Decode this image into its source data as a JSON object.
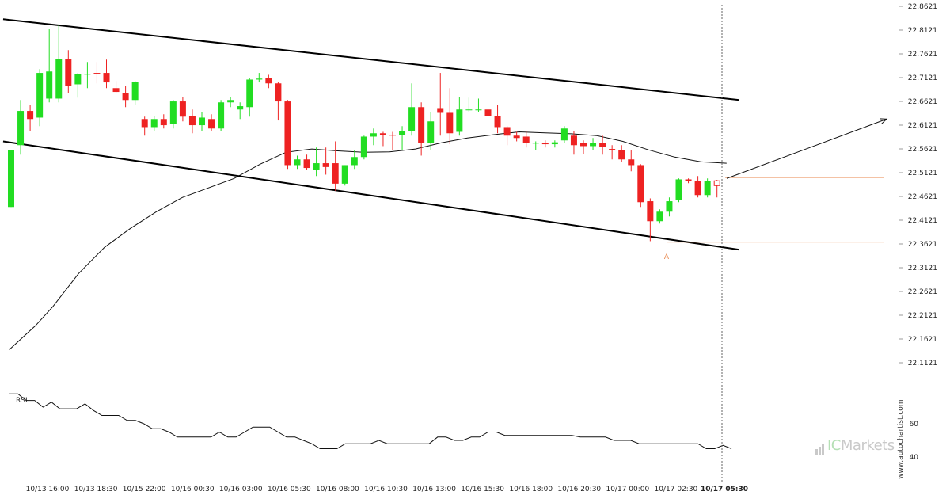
{
  "chart_data": {
    "type": "candlestick",
    "title": "",
    "y_axis": {
      "position": "right",
      "min": 22.0621,
      "max": 22.8621,
      "ticks": [
        "22.8621",
        "22.8121",
        "22.7621",
        "22.7121",
        "22.6621",
        "22.6121",
        "22.5621",
        "22.5121",
        "22.4621",
        "22.4121",
        "22.3621",
        "22.3121",
        "22.2621",
        "22.2121",
        "22.1621",
        "22.1121"
      ]
    },
    "x_axis": {
      "ticks": [
        "10/13 16:00",
        "10/13 18:30",
        "10/15 22:00",
        "10/16 00:30",
        "10/16 03:00",
        "10/16 05:30",
        "10/16 08:00",
        "10/16 10:30",
        "10/16 13:00",
        "10/16 15:30",
        "10/16 18:00",
        "10/16 20:30",
        "10/17 00:00",
        "10/17 02:30",
        "10/17 05:30"
      ],
      "highlight_last": true
    },
    "candles": [
      {
        "o": 22.44,
        "h": 22.56,
        "l": 22.44,
        "c": 22.56
      },
      {
        "o": 22.57,
        "h": 22.665,
        "l": 22.55,
        "c": 22.642
      },
      {
        "o": 22.642,
        "h": 22.655,
        "l": 22.6,
        "c": 22.625
      },
      {
        "o": 22.628,
        "h": 22.73,
        "l": 22.61,
        "c": 22.722
      },
      {
        "o": 22.668,
        "h": 22.815,
        "l": 22.66,
        "c": 22.725
      },
      {
        "o": 22.668,
        "h": 22.822,
        "l": 22.66,
        "c": 22.752
      },
      {
        "o": 22.752,
        "h": 22.77,
        "l": 22.68,
        "c": 22.695
      },
      {
        "o": 22.698,
        "h": 22.722,
        "l": 22.67,
        "c": 22.72
      },
      {
        "o": 22.72,
        "h": 22.745,
        "l": 22.69,
        "c": 22.72
      },
      {
        "o": 22.722,
        "h": 22.745,
        "l": 22.7,
        "c": 22.72
      },
      {
        "o": 22.722,
        "h": 22.75,
        "l": 22.69,
        "c": 22.702
      },
      {
        "o": 22.69,
        "h": 22.705,
        "l": 22.68,
        "c": 22.682
      },
      {
        "o": 22.68,
        "h": 22.695,
        "l": 22.65,
        "c": 22.665
      },
      {
        "o": 22.665,
        "h": 22.705,
        "l": 22.655,
        "c": 22.703
      },
      {
        "o": 22.625,
        "h": 22.63,
        "l": 22.59,
        "c": 22.608
      },
      {
        "o": 22.608,
        "h": 22.632,
        "l": 22.6,
        "c": 22.625
      },
      {
        "o": 22.625,
        "h": 22.635,
        "l": 22.605,
        "c": 22.612
      },
      {
        "o": 22.615,
        "h": 22.665,
        "l": 22.605,
        "c": 22.662
      },
      {
        "o": 22.662,
        "h": 22.672,
        "l": 22.62,
        "c": 22.63
      },
      {
        "o": 22.632,
        "h": 22.645,
        "l": 22.595,
        "c": 22.612
      },
      {
        "o": 22.612,
        "h": 22.64,
        "l": 22.6,
        "c": 22.628
      },
      {
        "o": 22.625,
        "h": 22.635,
        "l": 22.6,
        "c": 22.605
      },
      {
        "o": 22.605,
        "h": 22.665,
        "l": 22.6,
        "c": 22.66
      },
      {
        "o": 22.66,
        "h": 22.672,
        "l": 22.65,
        "c": 22.665
      },
      {
        "o": 22.645,
        "h": 22.66,
        "l": 22.625,
        "c": 22.652
      },
      {
        "o": 22.65,
        "h": 22.712,
        "l": 22.63,
        "c": 22.708
      },
      {
        "o": 22.708,
        "h": 22.722,
        "l": 22.702,
        "c": 22.71
      },
      {
        "o": 22.712,
        "h": 22.718,
        "l": 22.69,
        "c": 22.7
      },
      {
        "o": 22.7,
        "h": 22.702,
        "l": 22.622,
        "c": 22.662
      },
      {
        "o": 22.662,
        "h": 22.665,
        "l": 22.52,
        "c": 22.528
      },
      {
        "o": 22.528,
        "h": 22.548,
        "l": 22.52,
        "c": 22.54
      },
      {
        "o": 22.54,
        "h": 22.55,
        "l": 22.518,
        "c": 22.522
      },
      {
        "o": 22.518,
        "h": 22.565,
        "l": 22.505,
        "c": 22.532
      },
      {
        "o": 22.532,
        "h": 22.565,
        "l": 22.508,
        "c": 22.524
      },
      {
        "o": 22.532,
        "h": 22.578,
        "l": 22.474,
        "c": 22.489
      },
      {
        "o": 22.489,
        "h": 22.528,
        "l": 22.485,
        "c": 22.528
      },
      {
        "o": 22.528,
        "h": 22.56,
        "l": 22.52,
        "c": 22.545
      },
      {
        "o": 22.545,
        "h": 22.59,
        "l": 22.54,
        "c": 22.588
      },
      {
        "o": 22.588,
        "h": 22.605,
        "l": 22.57,
        "c": 22.595
      },
      {
        "o": 22.595,
        "h": 22.598,
        "l": 22.568,
        "c": 22.592
      },
      {
        "o": 22.592,
        "h": 22.598,
        "l": 22.56,
        "c": 22.59
      },
      {
        "o": 22.592,
        "h": 22.61,
        "l": 22.56,
        "c": 22.6
      },
      {
        "o": 22.6,
        "h": 22.7,
        "l": 22.59,
        "c": 22.65
      },
      {
        "o": 22.65,
        "h": 22.66,
        "l": 22.548,
        "c": 22.575
      },
      {
        "o": 22.575,
        "h": 22.64,
        "l": 22.56,
        "c": 22.62
      },
      {
        "o": 22.648,
        "h": 22.722,
        "l": 22.59,
        "c": 22.638
      },
      {
        "o": 22.638,
        "h": 22.69,
        "l": 22.572,
        "c": 22.595
      },
      {
        "o": 22.598,
        "h": 22.672,
        "l": 22.59,
        "c": 22.645
      },
      {
        "o": 22.645,
        "h": 22.67,
        "l": 22.64,
        "c": 22.645
      },
      {
        "o": 22.645,
        "h": 22.668,
        "l": 22.64,
        "c": 22.645
      },
      {
        "o": 22.645,
        "h": 22.655,
        "l": 22.62,
        "c": 22.632
      },
      {
        "o": 22.632,
        "h": 22.655,
        "l": 22.595,
        "c": 22.608
      },
      {
        "o": 22.608,
        "h": 22.61,
        "l": 22.57,
        "c": 22.59
      },
      {
        "o": 22.59,
        "h": 22.598,
        "l": 22.578,
        "c": 22.585
      },
      {
        "o": 22.588,
        "h": 22.6,
        "l": 22.565,
        "c": 22.575
      },
      {
        "o": 22.575,
        "h": 22.578,
        "l": 22.56,
        "c": 22.575
      },
      {
        "o": 22.575,
        "h": 22.58,
        "l": 22.565,
        "c": 22.572
      },
      {
        "o": 22.572,
        "h": 22.58,
        "l": 22.565,
        "c": 22.576
      },
      {
        "o": 22.58,
        "h": 22.61,
        "l": 22.575,
        "c": 22.605
      },
      {
        "o": 22.59,
        "h": 22.6,
        "l": 22.55,
        "c": 22.57
      },
      {
        "o": 22.575,
        "h": 22.58,
        "l": 22.552,
        "c": 22.568
      },
      {
        "o": 22.568,
        "h": 22.585,
        "l": 22.56,
        "c": 22.575
      },
      {
        "o": 22.575,
        "h": 22.59,
        "l": 22.55,
        "c": 22.566
      },
      {
        "o": 22.562,
        "h": 22.57,
        "l": 22.54,
        "c": 22.56
      },
      {
        "o": 22.56,
        "h": 22.57,
        "l": 22.535,
        "c": 22.54
      },
      {
        "o": 22.54,
        "h": 22.56,
        "l": 22.515,
        "c": 22.528
      },
      {
        "o": 22.528,
        "h": 22.53,
        "l": 22.44,
        "c": 22.45
      },
      {
        "o": 22.452,
        "h": 22.458,
        "l": 22.368,
        "c": 22.41
      },
      {
        "o": 22.41,
        "h": 22.435,
        "l": 22.405,
        "c": 22.43
      },
      {
        "o": 22.43,
        "h": 22.46,
        "l": 22.42,
        "c": 22.452
      },
      {
        "o": 22.455,
        "h": 22.5,
        "l": 22.45,
        "c": 22.498
      },
      {
        "o": 22.498,
        "h": 22.5,
        "l": 22.49,
        "c": 22.495
      },
      {
        "o": 22.495,
        "h": 22.505,
        "l": 22.46,
        "c": 22.465
      },
      {
        "o": 22.465,
        "h": 22.5,
        "l": 22.46,
        "c": 22.495
      },
      {
        "o": 22.495,
        "h": 22.497,
        "l": 22.46,
        "c": 22.485
      }
    ],
    "moving_average": [
      {
        "i": 0,
        "v": 22.14
      },
      {
        "i": 3,
        "v": 22.19
      },
      {
        "i": 5,
        "v": 22.23
      },
      {
        "i": 8,
        "v": 22.3
      },
      {
        "i": 11,
        "v": 22.355
      },
      {
        "i": 14,
        "v": 22.395
      },
      {
        "i": 17,
        "v": 22.43
      },
      {
        "i": 20,
        "v": 22.46
      },
      {
        "i": 23,
        "v": 22.48
      },
      {
        "i": 26,
        "v": 22.5
      },
      {
        "i": 29,
        "v": 22.53
      },
      {
        "i": 32,
        "v": 22.555
      },
      {
        "i": 35,
        "v": 22.562
      },
      {
        "i": 38,
        "v": 22.558
      },
      {
        "i": 41,
        "v": 22.555
      },
      {
        "i": 44,
        "v": 22.556
      },
      {
        "i": 47,
        "v": 22.562
      },
      {
        "i": 50,
        "v": 22.575
      },
      {
        "i": 53,
        "v": 22.585
      },
      {
        "i": 56,
        "v": 22.592
      },
      {
        "i": 59,
        "v": 22.598
      },
      {
        "i": 62,
        "v": 22.596
      },
      {
        "i": 65,
        "v": 22.594
      },
      {
        "i": 68,
        "v": 22.59
      },
      {
        "i": 71,
        "v": 22.578
      },
      {
        "i": 74,
        "v": 22.56
      },
      {
        "i": 77,
        "v": 22.545
      },
      {
        "i": 80,
        "v": 22.535
      },
      {
        "i": 83,
        "v": 22.532
      }
    ],
    "channel_upper": {
      "x1": -1,
      "y1": 22.835,
      "x2": 77,
      "y2": 22.665
    },
    "channel_lower": {
      "x1": -1,
      "y1": 22.578,
      "x2": 77,
      "y2": 22.35
    },
    "levels": [
      {
        "y": 22.623,
        "x_start": 77,
        "x_end": 90
      },
      {
        "y": 22.502,
        "x_start": 75,
        "x_end": 90
      },
      {
        "y": 22.366,
        "x_start": 68,
        "x_end": 90
      }
    ],
    "projection_arrow": {
      "x1": 76,
      "y1": 22.5,
      "x2": 89,
      "y2": 22.625
    },
    "point_label": {
      "text": "A",
      "i": 68
    },
    "vertical_marker_index": 75,
    "rsi": {
      "label": "RSI",
      "ticks": [
        "60",
        "40"
      ],
      "values": [
        78,
        78,
        74,
        74,
        70,
        73,
        69,
        69,
        69,
        72,
        68,
        65,
        65,
        65,
        62,
        62,
        60,
        57,
        57,
        55,
        52,
        52,
        52,
        52,
        52,
        55,
        52,
        52,
        55,
        58,
        58,
        58,
        55,
        52,
        52,
        50,
        48,
        45,
        45,
        45,
        48,
        48,
        48,
        48,
        50,
        48,
        48,
        48,
        48,
        48,
        48,
        52,
        52,
        50,
        50,
        52,
        52,
        55,
        55,
        53,
        53,
        53,
        53,
        53,
        53,
        53,
        53,
        53,
        52,
        52,
        52,
        52,
        50,
        50,
        50,
        48,
        48,
        48,
        48,
        48,
        48,
        48,
        48,
        45,
        45,
        47,
        45
      ]
    }
  },
  "credit": "www.autochartist.com",
  "brand": {
    "prefix": "IC",
    "suffix": "Markets"
  }
}
